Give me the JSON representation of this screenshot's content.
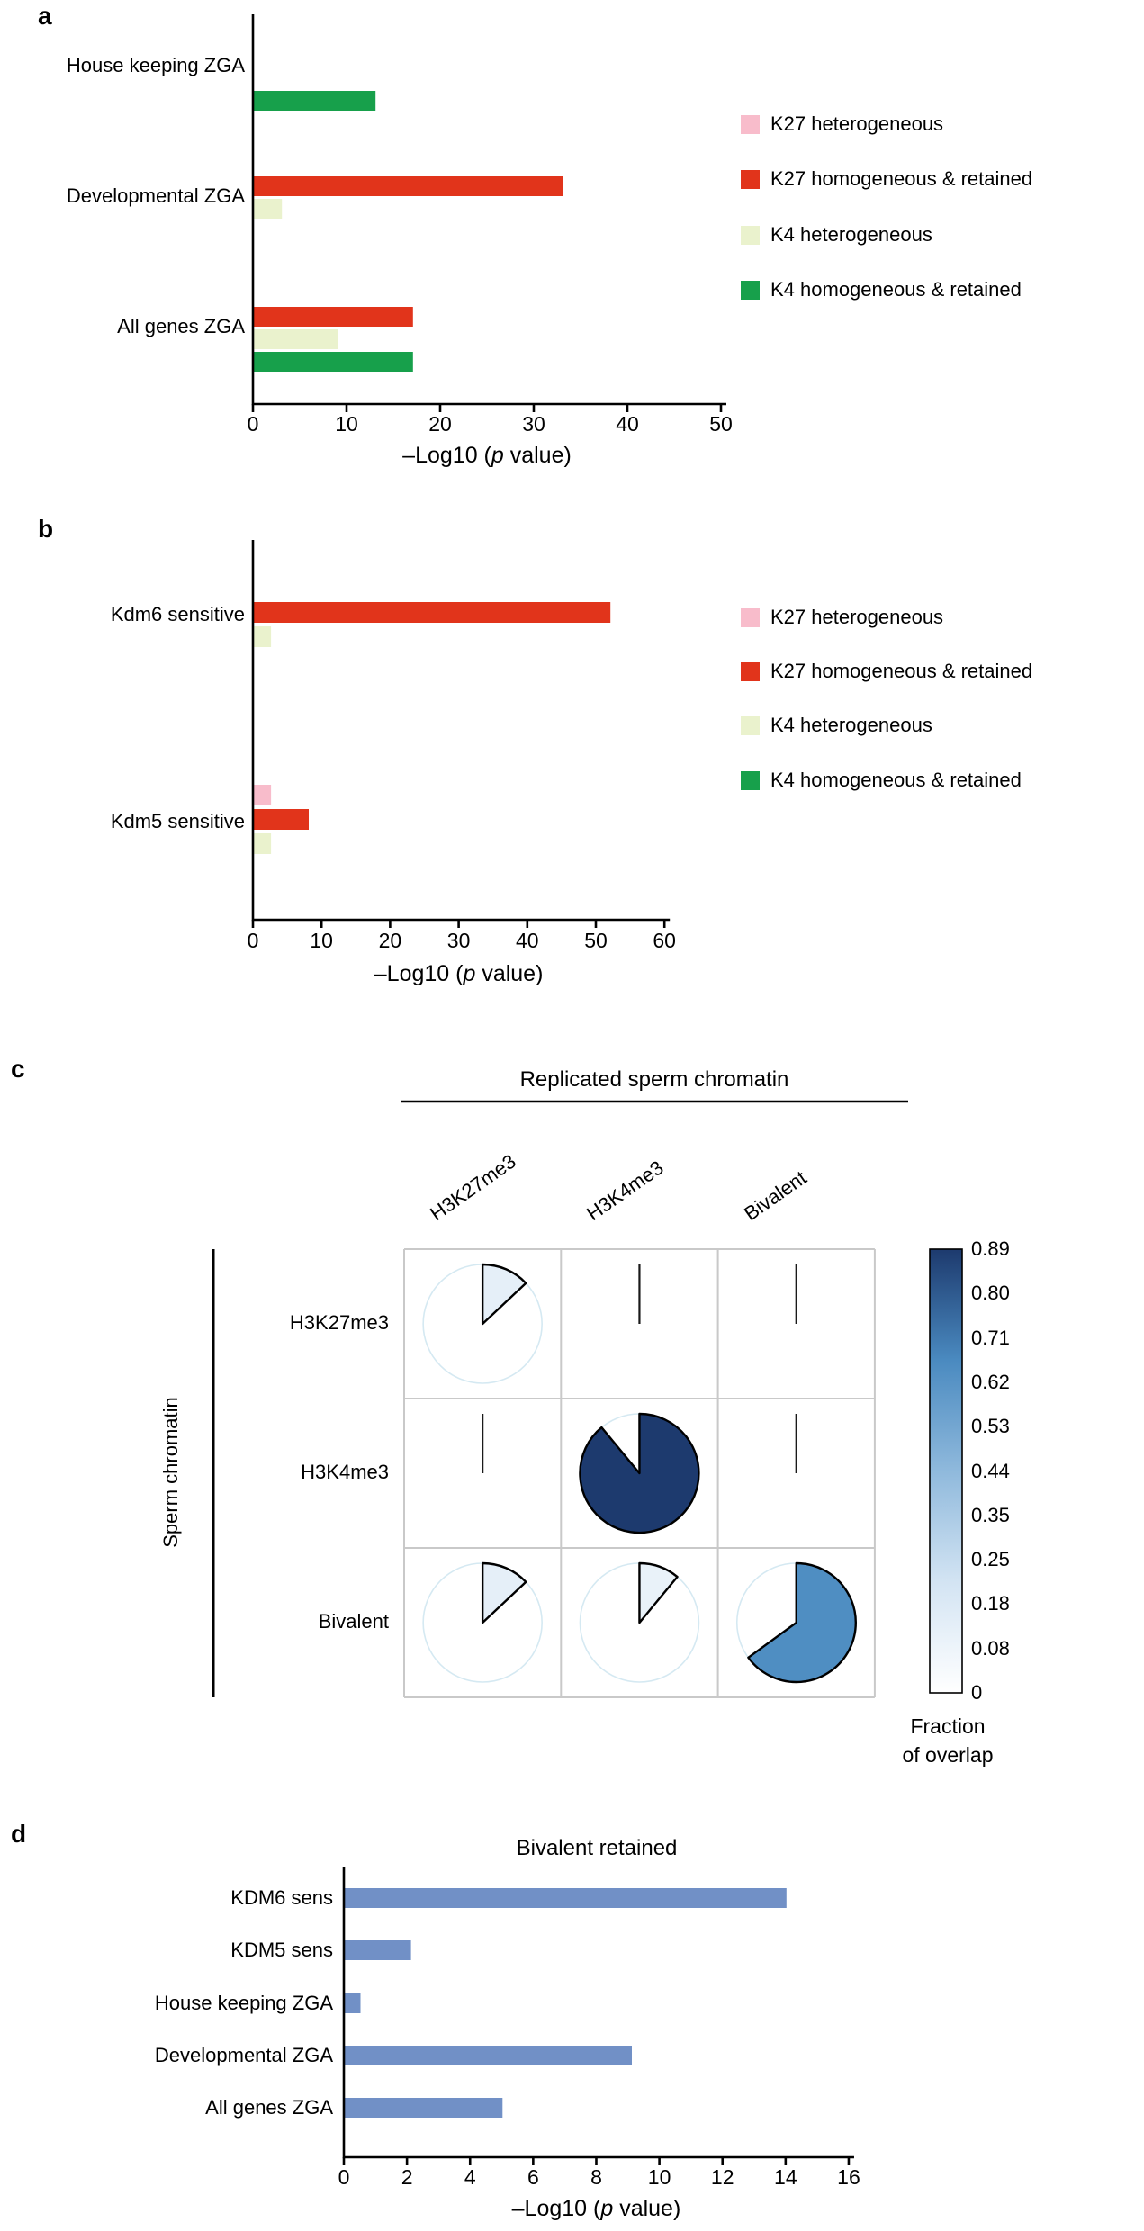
{
  "series_legend": [
    {
      "label": "K27 heterogeneous",
      "color": "#f8bccb"
    },
    {
      "label": "K27 homogeneous & retained",
      "color": "#e1341b"
    },
    {
      "label": "K4 heterogeneous",
      "color": "#eaf2cd"
    },
    {
      "label": "K4 homogeneous & retained",
      "color": "#17a04b"
    }
  ],
  "panels": {
    "a": {
      "letter": "a",
      "axis_title": {
        "prefix": "–Log10 (",
        "italic": "p",
        "suffix": " value)"
      }
    },
    "b": {
      "letter": "b",
      "axis_title": {
        "prefix": "–Log10 (",
        "italic": "p",
        "suffix": " value)"
      }
    },
    "c": {
      "letter": "c"
    },
    "d": {
      "letter": "d",
      "axis_title": {
        "prefix": "–Log10 (",
        "italic": "p",
        "suffix": " value)"
      }
    }
  },
  "chart_data": [
    {
      "panel": "a",
      "type": "bar",
      "orientation": "horizontal",
      "xlabel": "–Log10 (p value)",
      "xlim": [
        0,
        50
      ],
      "xticks": [
        0,
        10,
        20,
        30,
        40,
        50
      ],
      "legend": [
        "K27 heterogeneous",
        "K27 homogeneous & retained",
        "K4 heterogeneous",
        "K4 homogeneous & retained"
      ],
      "groups": [
        {
          "category": "House keeping ZGA",
          "bars": [
            {
              "series": "K4 homogeneous & retained",
              "value": 13
            }
          ]
        },
        {
          "category": "Developmental ZGA",
          "bars": [
            {
              "series": "K27 homogeneous & retained",
              "value": 33
            },
            {
              "series": "K4 heterogeneous",
              "value": 3
            }
          ]
        },
        {
          "category": "All genes ZGA",
          "bars": [
            {
              "series": "K27 homogeneous & retained",
              "value": 17
            },
            {
              "series": "K4 heterogeneous",
              "value": 9
            },
            {
              "series": "K4 homogeneous & retained",
              "value": 17
            }
          ]
        }
      ]
    },
    {
      "panel": "b",
      "type": "bar",
      "orientation": "horizontal",
      "xlabel": "–Log10 (p value)",
      "xlim": [
        0,
        60
      ],
      "xticks": [
        0,
        10,
        20,
        30,
        40,
        50,
        60
      ],
      "legend": [
        "K27 heterogeneous",
        "K27 homogeneous & retained",
        "K4 heterogeneous",
        "K4 homogeneous & retained"
      ],
      "groups": [
        {
          "category": "Kdm6 sensitive",
          "bars": [
            {
              "series": "K27 homogeneous & retained",
              "value": 52
            },
            {
              "series": "K4 heterogeneous",
              "value": 2.5
            }
          ]
        },
        {
          "category": "Kdm5 sensitive",
          "bars": [
            {
              "series": "K27 heterogeneous",
              "value": 2.5
            },
            {
              "series": "K27 homogeneous & retained",
              "value": 8
            },
            {
              "series": "K4 heterogeneous",
              "value": 2.5
            }
          ]
        }
      ]
    },
    {
      "panel": "c",
      "type": "heatmap",
      "subtype": "pie-matrix",
      "title": "Replicated sperm chromatin",
      "row_axis_label": "Sperm chromatin",
      "columns": [
        "H3K27me3",
        "H3K4me3",
        "Bivalent"
      ],
      "rows": [
        "H3K27me3",
        "H3K4me3",
        "Bivalent"
      ],
      "values": [
        [
          0.13,
          0,
          0
        ],
        [
          0,
          0.89,
          0
        ],
        [
          0.13,
          0.11,
          0.65
        ]
      ],
      "colorbar": {
        "vmin": 0,
        "vmax": 0.89,
        "tick_labels": [
          "0.89",
          "0.80",
          "0.71",
          "0.62",
          "0.53",
          "0.44",
          "0.35",
          "0.25",
          "0.18",
          "0.08",
          "0"
        ],
        "label": "Fraction of overlap",
        "label_lines": [
          "Fraction",
          "of overlap"
        ]
      }
    },
    {
      "panel": "d",
      "type": "bar",
      "orientation": "horizontal",
      "title": "Bivalent retained",
      "xlabel": "–Log10 (p value)",
      "xlim": [
        0,
        16
      ],
      "xticks": [
        0,
        2,
        4,
        6,
        8,
        10,
        12,
        14,
        16
      ],
      "bar_color": "#7190c6",
      "categories": [
        "KDM6 sens",
        "KDM5 sens",
        "House keeping ZGA",
        "Developmental ZGA",
        "All genes ZGA"
      ],
      "values": [
        14,
        2.1,
        0.5,
        9.1,
        5
      ]
    }
  ]
}
